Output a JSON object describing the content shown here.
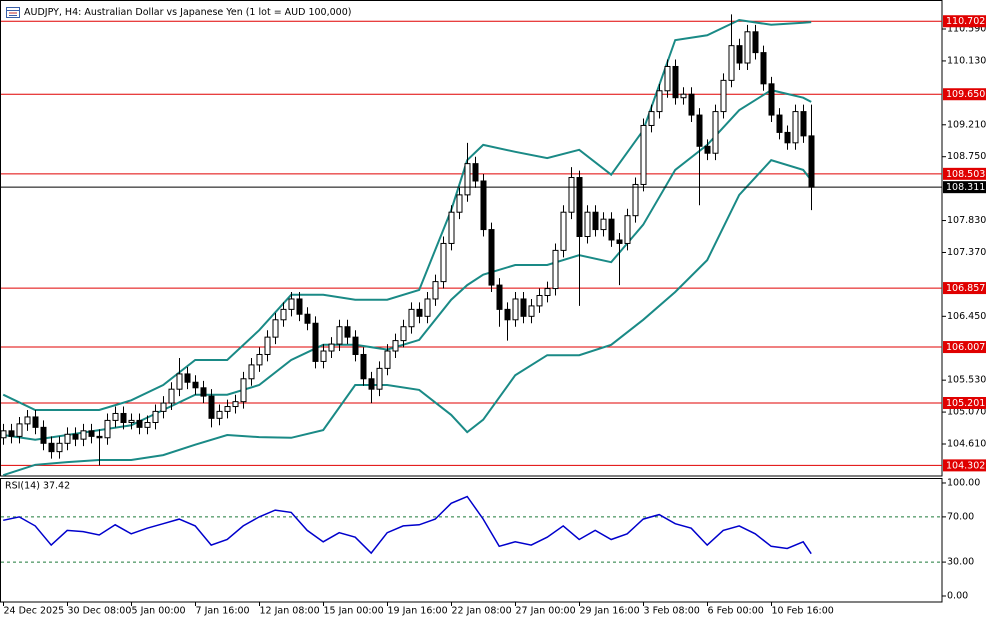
{
  "chart_data": [
    {
      "type": "candlestick",
      "title": "AUDJPY, H4:  Australian Dollar vs Japanese Yen (1 lot = AUD 100,000)",
      "open": [
        104.7,
        104.8,
        104.72,
        104.9,
        105.0,
        104.85,
        104.62,
        104.5,
        104.62,
        104.75,
        104.68,
        104.8,
        104.72,
        104.7,
        104.95,
        105.05,
        104.92,
        104.95,
        104.85,
        104.92,
        105.08,
        105.2,
        105.4,
        105.62,
        105.5,
        105.42,
        105.3,
        104.98,
        105.08,
        105.15,
        105.22,
        105.55,
        105.75,
        105.9,
        106.15,
        106.4,
        106.55,
        106.7,
        106.48,
        106.35,
        105.8,
        105.95,
        106.05,
        106.3,
        106.15,
        105.9,
        105.55,
        105.4,
        105.7,
        105.95,
        106.1,
        106.3,
        106.55,
        106.45,
        106.7,
        106.95,
        107.5,
        107.95,
        108.2,
        108.65,
        108.4,
        107.7,
        106.9,
        106.55,
        106.4,
        106.7,
        106.45,
        106.6,
        106.75,
        106.85,
        107.4,
        107.95,
        108.45,
        107.6,
        107.95,
        107.7,
        107.85,
        107.55,
        107.5,
        107.9,
        108.35,
        109.2,
        109.4,
        109.7,
        110.05,
        109.6,
        109.65,
        109.35,
        108.9,
        108.8,
        109.4,
        109.85,
        110.35,
        110.1,
        110.55,
        110.25,
        109.8,
        109.35,
        109.1,
        108.95,
        109.4,
        109.05
      ],
      "high": [
        104.9,
        104.9,
        105.0,
        105.1,
        105.1,
        104.95,
        104.72,
        104.72,
        104.85,
        104.85,
        104.9,
        104.9,
        104.82,
        105.05,
        105.15,
        105.15,
        105.05,
        105.05,
        105.02,
        105.18,
        105.3,
        105.5,
        105.85,
        105.72,
        105.6,
        105.52,
        105.4,
        105.18,
        105.25,
        105.32,
        105.65,
        105.85,
        106.0,
        106.25,
        106.5,
        106.65,
        106.8,
        106.8,
        106.58,
        106.45,
        106.05,
        106.15,
        106.4,
        106.4,
        106.25,
        106.0,
        105.65,
        105.8,
        106.05,
        106.2,
        106.4,
        106.65,
        106.65,
        106.8,
        107.05,
        107.6,
        108.05,
        108.3,
        108.95,
        108.75,
        108.5,
        107.8,
        107.0,
        106.65,
        106.8,
        106.8,
        106.7,
        106.85,
        106.95,
        107.5,
        108.05,
        108.6,
        108.55,
        108.05,
        108.05,
        107.95,
        107.95,
        107.65,
        108.0,
        108.45,
        109.3,
        109.5,
        109.8,
        110.15,
        110.15,
        109.75,
        109.75,
        109.45,
        109.0,
        109.5,
        109.95,
        110.8,
        110.45,
        110.65,
        110.65,
        110.35,
        109.9,
        109.45,
        109.2,
        109.5,
        109.5,
        109.5
      ],
      "low": [
        104.6,
        104.62,
        104.62,
        104.8,
        104.75,
        104.52,
        104.4,
        104.4,
        104.52,
        104.58,
        104.58,
        104.62,
        104.3,
        104.6,
        104.85,
        104.82,
        104.82,
        104.75,
        104.75,
        104.82,
        104.98,
        105.1,
        105.3,
        105.4,
        105.32,
        105.2,
        104.85,
        104.88,
        104.98,
        105.05,
        105.12,
        105.45,
        105.65,
        105.8,
        106.05,
        106.3,
        106.45,
        106.38,
        106.25,
        105.7,
        105.7,
        105.85,
        105.95,
        106.05,
        105.8,
        105.45,
        105.2,
        105.3,
        105.6,
        105.85,
        106.0,
        106.2,
        106.35,
        106.35,
        106.6,
        106.85,
        107.4,
        107.85,
        108.1,
        108.3,
        107.6,
        106.8,
        106.3,
        106.1,
        106.3,
        106.35,
        106.35,
        106.5,
        106.65,
        106.75,
        107.3,
        107.85,
        106.6,
        107.5,
        107.6,
        107.6,
        107.45,
        106.9,
        107.4,
        107.8,
        108.25,
        109.1,
        109.3,
        109.6,
        109.5,
        109.5,
        109.25,
        108.05,
        108.7,
        108.7,
        109.3,
        109.75,
        110.0,
        110.0,
        110.15,
        109.7,
        109.25,
        109.0,
        108.85,
        108.85,
        108.95,
        107.98
      ],
      "close": [
        104.8,
        104.72,
        104.9,
        105.0,
        104.85,
        104.62,
        104.5,
        104.62,
        104.75,
        104.68,
        104.8,
        104.72,
        104.7,
        104.95,
        105.05,
        104.92,
        104.95,
        104.85,
        104.92,
        105.08,
        105.2,
        105.4,
        105.62,
        105.5,
        105.42,
        105.3,
        104.98,
        105.08,
        105.15,
        105.22,
        105.55,
        105.75,
        105.9,
        106.15,
        106.4,
        106.55,
        106.7,
        106.48,
        106.35,
        105.8,
        105.95,
        106.05,
        106.3,
        106.15,
        105.9,
        105.55,
        105.4,
        105.7,
        105.95,
        106.1,
        106.3,
        106.55,
        106.45,
        106.7,
        106.95,
        107.5,
        107.95,
        108.2,
        108.65,
        108.4,
        107.7,
        106.9,
        106.55,
        106.4,
        106.7,
        106.45,
        106.6,
        106.75,
        106.85,
        107.4,
        107.95,
        108.45,
        107.6,
        107.95,
        107.7,
        107.85,
        107.55,
        107.5,
        107.9,
        108.35,
        109.2,
        109.4,
        109.7,
        110.05,
        109.6,
        109.65,
        109.35,
        108.9,
        108.8,
        109.4,
        109.85,
        110.35,
        110.1,
        110.55,
        110.25,
        109.8,
        109.35,
        109.1,
        108.95,
        109.4,
        109.05,
        108.311
      ],
      "up_color": "#ffffff",
      "down_color": "#000000",
      "candle_edge": "#000000",
      "bands": {
        "color": "#1a8a86",
        "x": [
          0,
          4,
          8,
          12,
          16,
          20,
          24,
          28,
          32,
          36,
          40,
          44,
          48,
          52,
          56,
          58,
          60,
          64,
          68,
          72,
          76,
          80,
          84,
          88,
          92,
          96,
          100,
          101
        ],
        "upper": [
          105.32,
          105.1,
          105.1,
          105.1,
          105.24,
          105.46,
          105.82,
          105.82,
          106.25,
          106.76,
          106.76,
          106.69,
          106.69,
          106.83,
          107.98,
          108.7,
          108.92,
          108.82,
          108.73,
          108.85,
          108.49,
          109.13,
          110.43,
          110.5,
          110.72,
          110.65,
          110.68,
          110.69
        ],
        "middle": [
          104.74,
          104.67,
          104.74,
          104.81,
          104.88,
          105.1,
          105.32,
          105.32,
          105.46,
          105.82,
          106.04,
          106.04,
          105.97,
          106.11,
          106.69,
          106.9,
          107.05,
          107.19,
          107.19,
          107.33,
          107.23,
          107.77,
          108.56,
          108.92,
          109.42,
          109.71,
          109.6,
          109.54
        ],
        "lower": [
          104.16,
          104.31,
          104.35,
          104.38,
          104.38,
          104.45,
          104.6,
          104.74,
          104.71,
          104.7,
          104.81,
          105.46,
          105.46,
          105.39,
          105.03,
          104.78,
          104.96,
          105.6,
          105.89,
          105.89,
          106.04,
          106.4,
          106.8,
          107.26,
          108.2,
          108.7,
          108.56,
          108.41
        ]
      },
      "levels": [
        110.702,
        {
          "value": 109.65,
          "label": "109.650"
        },
        108.503,
        106.857,
        106.007,
        105.201,
        104.302
      ],
      "level_color": "#e00000",
      "last_price": 108.311,
      "last_price_color": "#000000",
      "xlim": [
        -0.4,
        117.35
      ],
      "ylim": [
        104.149,
        111.008
      ],
      "yticks": [
        {
          "value": 110.59,
          "label": "110.590"
        },
        {
          "value": 110.13,
          "label": "110.130"
        },
        {
          "value": 109.21,
          "label": "109.210"
        },
        {
          "value": 108.75,
          "label": "108.750"
        },
        {
          "value": 107.83,
          "label": "107.830"
        },
        {
          "value": 107.37,
          "label": "107.370"
        },
        {
          "value": 106.45,
          "label": "106.450"
        },
        {
          "value": 105.53,
          "label": "105.530"
        },
        {
          "value": 105.07,
          "label": "105.070"
        },
        {
          "value": 104.61,
          "label": "104.610"
        }
      ]
    },
    {
      "type": "line",
      "title": "RSI(14) 37.42",
      "color": "#0000cc",
      "x": [
        0,
        2,
        4,
        6,
        8,
        10,
        12,
        14,
        16,
        18,
        20,
        22,
        24,
        26,
        28,
        30,
        32,
        34,
        36,
        38,
        40,
        42,
        44,
        46,
        48,
        50,
        52,
        54,
        56,
        58,
        60,
        62,
        64,
        66,
        68,
        70,
        72,
        74,
        76,
        78,
        80,
        82,
        84,
        86,
        88,
        90,
        92,
        94,
        96,
        98,
        100,
        101
      ],
      "values": [
        67,
        70,
        62,
        45,
        58,
        57,
        54,
        63,
        55,
        60,
        64,
        68,
        62,
        45,
        50,
        62,
        70,
        76,
        74,
        58,
        48,
        56,
        52,
        38,
        56,
        62,
        63,
        68,
        82,
        88,
        68,
        44,
        48,
        45,
        52,
        62,
        50,
        58,
        50,
        55,
        68,
        72,
        64,
        60,
        45,
        58,
        62,
        55,
        44,
        42,
        48,
        37.42
      ],
      "levels": [
        70,
        30
      ],
      "level_color": "#1f7a3a",
      "xlim": [
        -0.4,
        117.35
      ],
      "ylim": [
        -5.3,
        104.4
      ],
      "yticks": [
        {
          "value": 100,
          "label": "100.00"
        },
        {
          "value": 70,
          "label": "70.00"
        },
        {
          "value": 30,
          "label": "30.00"
        },
        {
          "value": 0,
          "label": "0.00"
        }
      ],
      "xticks": [
        {
          "value": 0,
          "label": "24 Dec 2025"
        },
        {
          "value": 8,
          "label": "30 Dec 08:00"
        },
        {
          "value": 16,
          "label": "5 Jan 00:00"
        },
        {
          "value": 24,
          "label": "7 Jan 16:00"
        },
        {
          "value": 32,
          "label": "12 Jan 08:00"
        },
        {
          "value": 40,
          "label": "15 Jan 00:00"
        },
        {
          "value": 48,
          "label": "19 Jan 16:00"
        },
        {
          "value": 56,
          "label": "22 Jan 08:00"
        },
        {
          "value": 64,
          "label": "27 Jan 00:00"
        },
        {
          "value": 72,
          "label": "29 Jan 16:00"
        },
        {
          "value": 80,
          "label": "3 Feb 08:00"
        },
        {
          "value": 88,
          "label": "6 Feb 00:00"
        },
        {
          "value": 96,
          "label": "10 Feb 16:00"
        }
      ]
    }
  ]
}
